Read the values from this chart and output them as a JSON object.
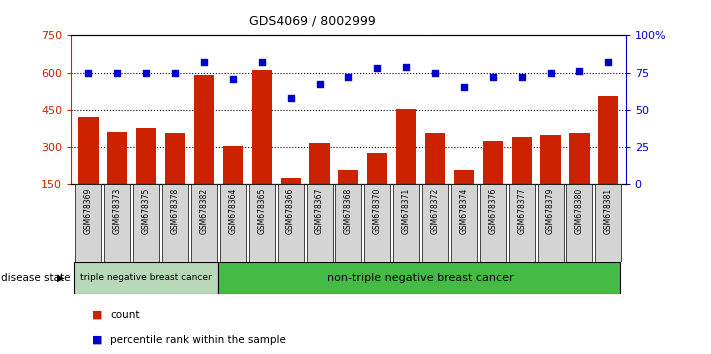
{
  "title": "GDS4069 / 8002999",
  "samples": [
    "GSM678369",
    "GSM678373",
    "GSM678375",
    "GSM678378",
    "GSM678382",
    "GSM678364",
    "GSM678365",
    "GSM678366",
    "GSM678367",
    "GSM678368",
    "GSM678370",
    "GSM678371",
    "GSM678372",
    "GSM678374",
    "GSM678376",
    "GSM678377",
    "GSM678379",
    "GSM678380",
    "GSM678381"
  ],
  "counts": [
    420,
    360,
    375,
    355,
    590,
    305,
    610,
    175,
    315,
    205,
    275,
    455,
    355,
    205,
    325,
    340,
    350,
    355,
    505
  ],
  "percentiles": [
    75,
    75,
    75,
    75,
    82,
    71,
    82,
    58,
    67,
    72,
    78,
    79,
    75,
    65,
    72,
    72,
    75,
    76,
    82
  ],
  "group1_count": 5,
  "group1_label": "triple negative breast cancer",
  "group2_label": "non-triple negative breast cancer",
  "ylim_left": [
    150,
    750
  ],
  "ylim_right": [
    0,
    100
  ],
  "yticks_left": [
    150,
    300,
    450,
    600,
    750
  ],
  "yticks_right": [
    0,
    25,
    50,
    75,
    100
  ],
  "ytick_labels_right": [
    "0",
    "25",
    "50",
    "75",
    "100%"
  ],
  "bar_color": "#cc2200",
  "dot_color": "#0000cc",
  "bg_color": "#ffffff",
  "disease_state_label": "disease state",
  "legend_count_label": "count",
  "legend_pct_label": "percentile rank within the sample",
  "group1_bg": "#b8d9b8",
  "group2_bg": "#44bb44"
}
